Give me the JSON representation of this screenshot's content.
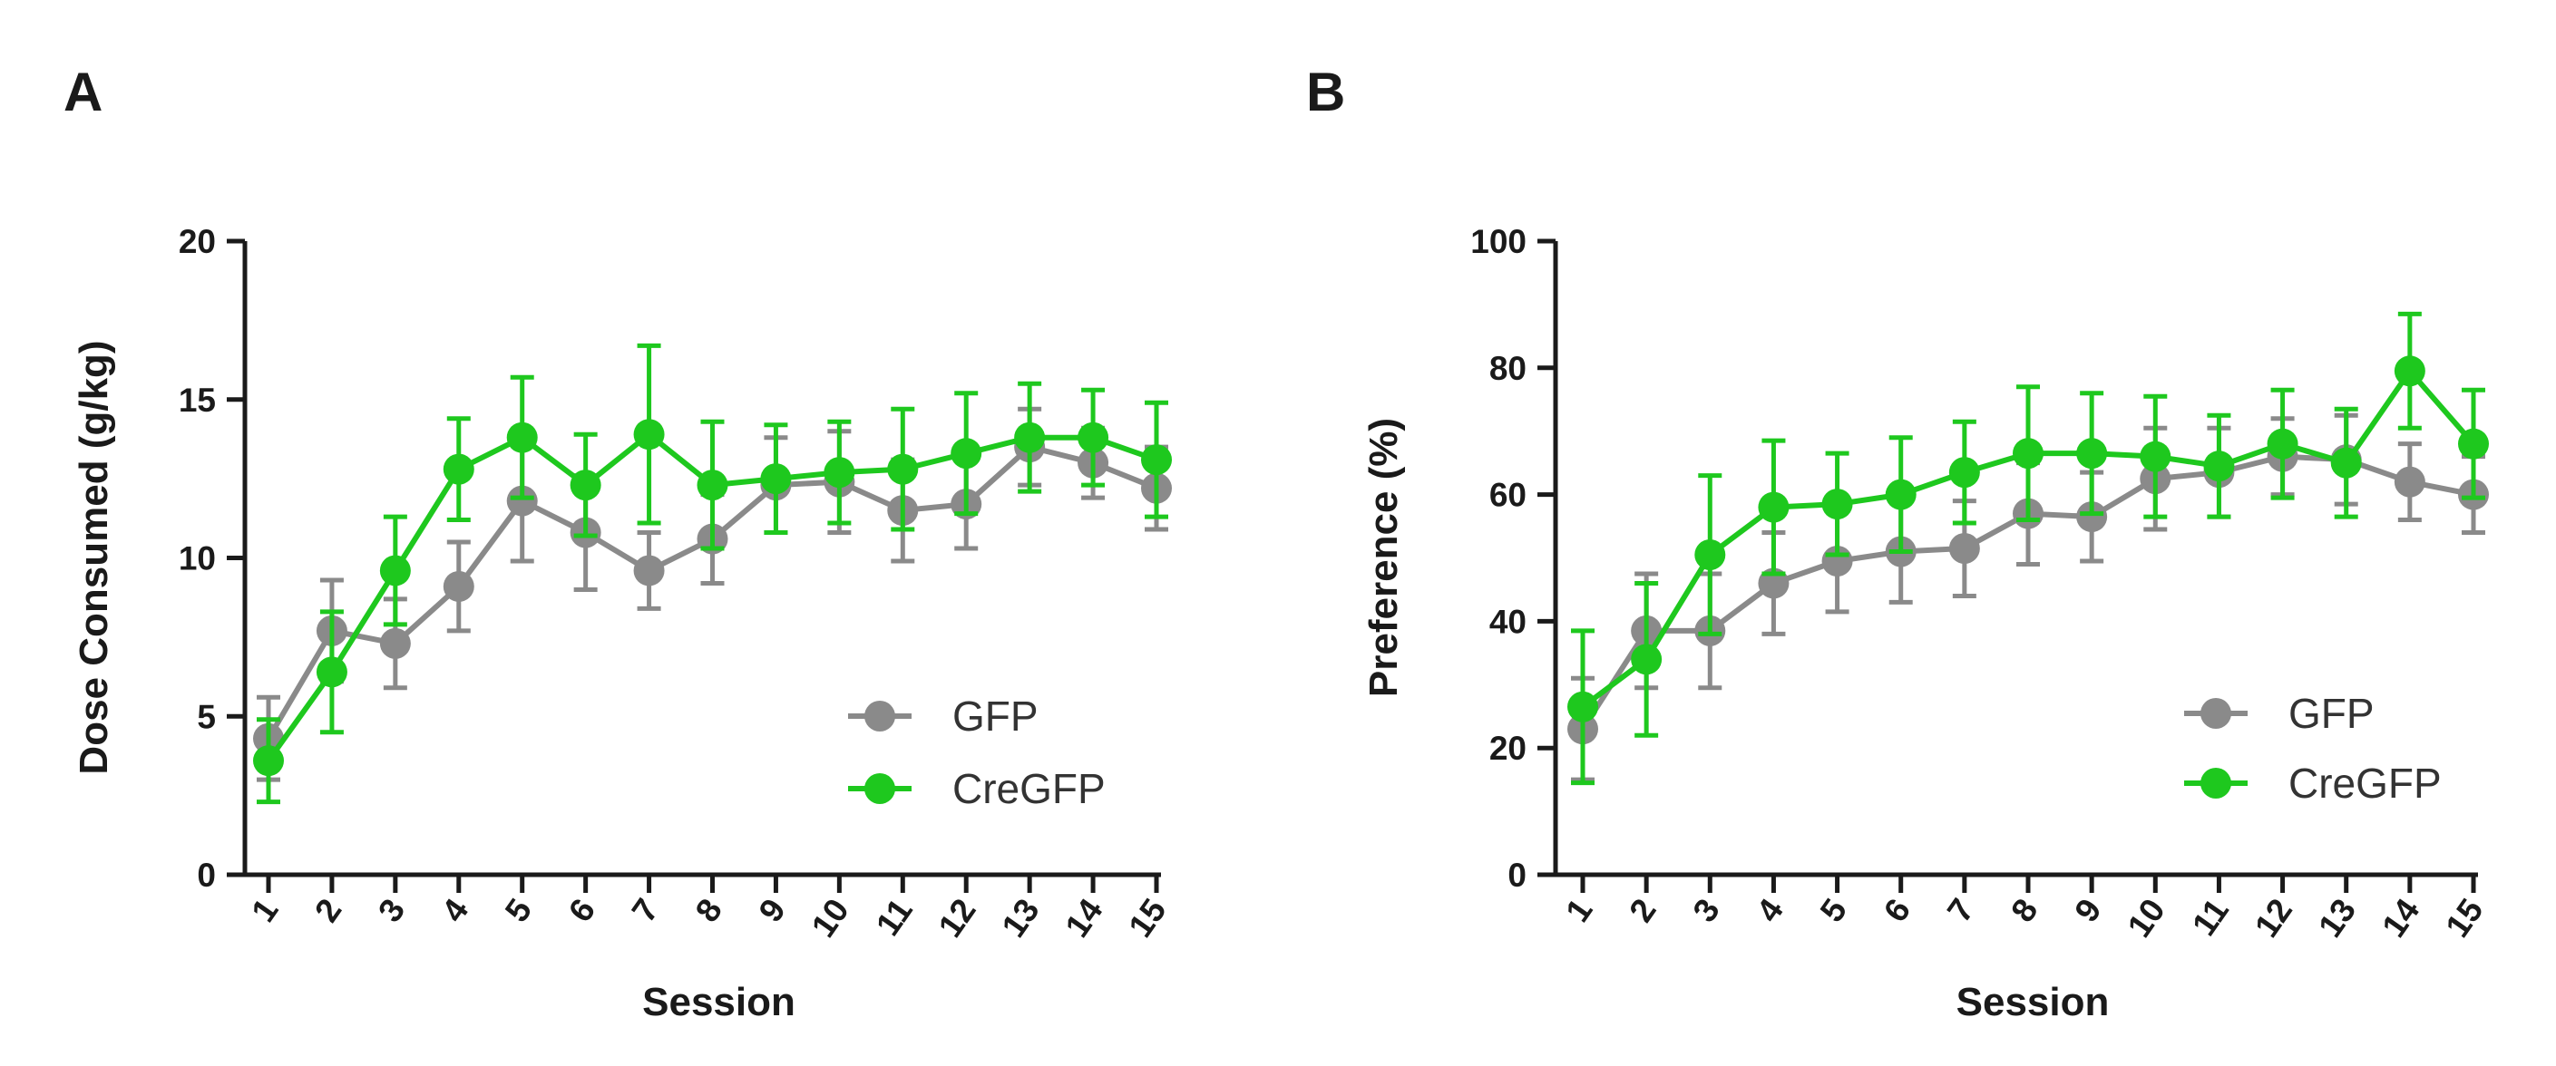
{
  "chart_data": [
    {
      "panel": "A",
      "type": "line",
      "xlabel": "Session",
      "ylabel": "Dose Consumed (g/kg)",
      "ylim": [
        0,
        20
      ],
      "yticks": [
        "0",
        "5",
        "10",
        "15",
        "20"
      ],
      "categories": [
        "1",
        "2",
        "3",
        "4",
        "5",
        "6",
        "7",
        "8",
        "9",
        "10",
        "11",
        "12",
        "13",
        "14",
        "15"
      ],
      "legend_position": "bottom-right",
      "series": [
        {
          "name": "GFP",
          "color": "#8a8a8a",
          "values": [
            4.3,
            7.7,
            7.3,
            9.1,
            11.8,
            10.8,
            9.6,
            10.6,
            12.3,
            12.4,
            11.5,
            11.7,
            13.5,
            13.0,
            12.2
          ],
          "errors": [
            1.3,
            1.6,
            1.4,
            1.4,
            1.9,
            1.8,
            1.2,
            1.4,
            1.5,
            1.6,
            1.6,
            1.4,
            1.2,
            1.1,
            1.3
          ]
        },
        {
          "name": "CreGFP",
          "color": "#1ec81e",
          "values": [
            3.6,
            6.4,
            9.6,
            12.8,
            13.8,
            12.3,
            13.9,
            12.3,
            12.5,
            12.7,
            12.8,
            13.3,
            13.8,
            13.8,
            13.1
          ],
          "errors": [
            1.3,
            1.9,
            1.7,
            1.6,
            1.9,
            1.6,
            2.8,
            2.0,
            1.7,
            1.6,
            1.9,
            1.9,
            1.7,
            1.5,
            1.8
          ]
        }
      ]
    },
    {
      "panel": "B",
      "type": "line",
      "xlabel": "Session",
      "ylabel": "Preference (%)",
      "ylim": [
        0,
        100
      ],
      "yticks": [
        "0",
        "20",
        "40",
        "60",
        "80",
        "100"
      ],
      "categories": [
        "1",
        "2",
        "3",
        "4",
        "5",
        "6",
        "7",
        "8",
        "9",
        "10",
        "11",
        "12",
        "13",
        "14",
        "15"
      ],
      "legend_position": "bottom-right",
      "series": [
        {
          "name": "GFP",
          "color": "#8a8a8a",
          "values": [
            23,
            38.5,
            38.5,
            46,
            49.5,
            51,
            51.5,
            57,
            56.5,
            62.5,
            63.5,
            66,
            65.5,
            62,
            60
          ],
          "errors": [
            8,
            9,
            9,
            8,
            8,
            8,
            7.5,
            8,
            7,
            8,
            7,
            6,
            7,
            6,
            6
          ]
        },
        {
          "name": "CreGFP",
          "color": "#1ec81e",
          "values": [
            26.5,
            34,
            50.5,
            58,
            58.5,
            60,
            63.5,
            66.5,
            66.5,
            66,
            64.5,
            68,
            65,
            79.5,
            68
          ],
          "errors": [
            12,
            12,
            12.5,
            10.5,
            8,
            9,
            8,
            10.5,
            9.5,
            9.5,
            8,
            8.5,
            8.5,
            9,
            8.5
          ]
        }
      ]
    }
  ]
}
